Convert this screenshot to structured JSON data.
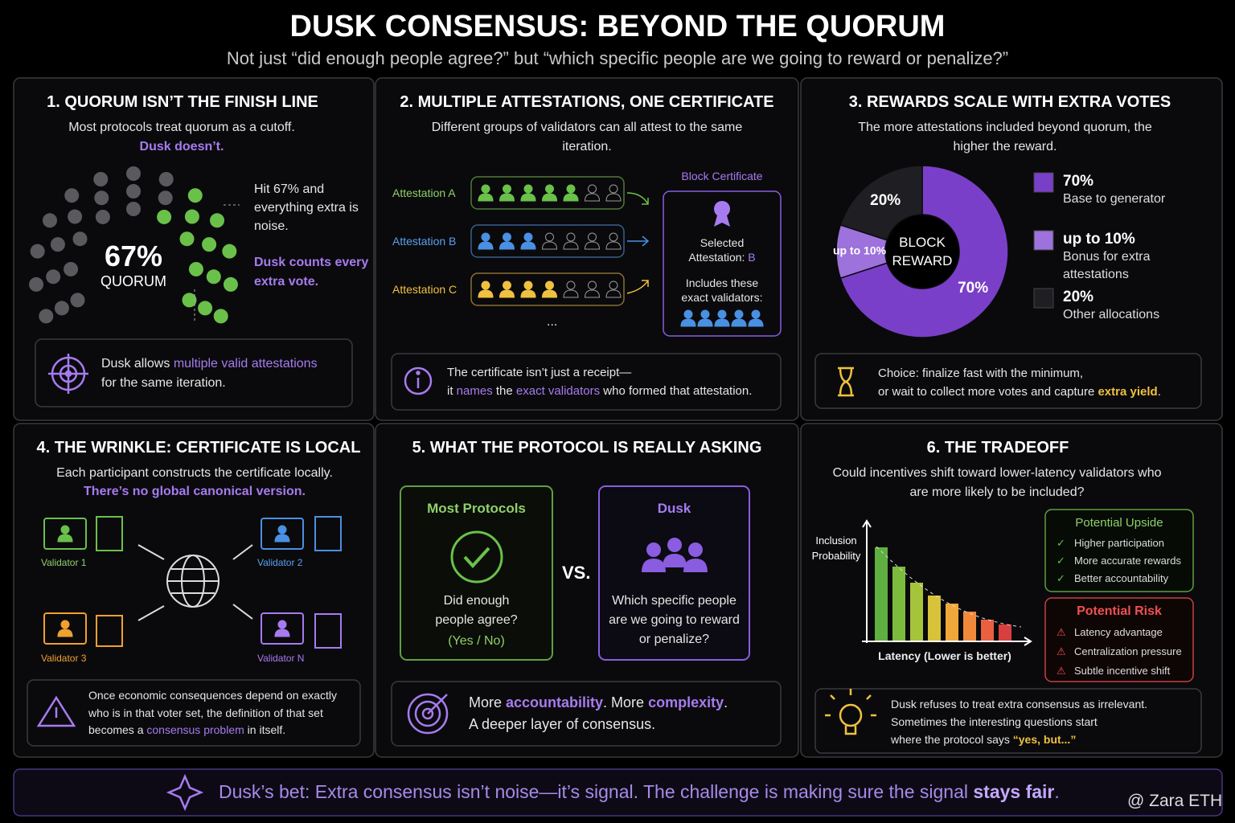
{
  "title": "DUSK CONSENSUS: BEYOND THE QUORUM",
  "subtitle": "Not just “did enough people agree?” but “which specific people are we going to reward or penalize?”",
  "panel1": {
    "heading": "1. QUORUM ISN’T THE FINISH LINE",
    "intro": "Most protocols treat quorum as a cutoff.",
    "highlight": "Dusk doesn’t.",
    "gauge_value": "67%",
    "gauge_label": "QUORUM",
    "note": "Hit 67% and everything extra is noise.",
    "note_highlight": "Dusk counts every extra vote.",
    "callout": [
      "Dusk allows ",
      "multiple valid attestations",
      "for the same iteration."
    ]
  },
  "panel2": {
    "heading": "2. MULTIPLE ATTESTATIONS, ONE CERTIFICATE",
    "intro": "Different groups of validators can all attest to the same iteration.",
    "attestations": [
      "Attestation A",
      "Attestation B",
      "Attestation C"
    ],
    "ellipsis": "...",
    "certificate_title": "Block Certificate",
    "certificate_selected": "Selected Attestation: ",
    "certificate_selected_value": "B",
    "certificate_includes": "Includes these exact validators:",
    "callout": [
      "The certificate isn’t just a receipt—",
      "it ",
      "names",
      " the ",
      "exact validators",
      " who formed that attestation."
    ]
  },
  "panel3": {
    "heading": "3. REWARDS SCALE WITH EXTRA VOTES",
    "intro": "The more attestations included beyond quorum, the higher the reward.",
    "chart_data": {
      "type": "pie",
      "center_label": "BLOCK REWARD",
      "values": [
        70,
        10,
        20
      ],
      "value_labels": [
        "70%",
        "up to 10%",
        "20%"
      ],
      "colors": [
        "#7a3fc8",
        "#9d72dc",
        "#1f1f23"
      ],
      "legend_labels": [
        "Base to generator",
        "Bonus for extra attestations",
        "Other allocations"
      ]
    },
    "callout": [
      "Choice: finalize fast with the minimum,",
      "or wait to collect more votes and capture ",
      "extra yield",
      "."
    ]
  },
  "panel4": {
    "heading": "4. THE WRINKLE: CERTIFICATE IS LOCAL",
    "intro": "Each participant constructs the certificate locally.",
    "highlight": "There’s no global canonical version.",
    "validators": [
      "Validator 1",
      "Validator 2",
      "Validator 3",
      "Validator N"
    ],
    "callout": [
      "Once economic consequences depend on exactly who is in that voter set, the definition of that set becomes a ",
      "consensus problem",
      " in itself."
    ]
  },
  "panel5": {
    "heading": "5. WHAT THE PROTOCOL IS REALLY ASKING",
    "left": {
      "title": "Most Protocols",
      "question": "Did enough people agree?",
      "answer": "(Yes / No)"
    },
    "vs": "VS.",
    "right": {
      "title": "Dusk",
      "question": "Which specific people are we going to reward or penalize?"
    },
    "callout": [
      "More ",
      "accountability",
      ". More ",
      "complexity",
      ".",
      "A deeper layer of consensus."
    ]
  },
  "panel6": {
    "heading": "6. THE TRADEOFF",
    "intro": "Could incentives shift toward lower-latency validators who are more likely to be included?",
    "y_label": "Inclusion Probability",
    "x_label": "Latency (Lower is better)",
    "upside": {
      "title": "Potential Upside",
      "items": [
        "Higher participation",
        "More accurate rewards",
        "Better accountability"
      ]
    },
    "risk": {
      "title": "Potential Risk",
      "items": [
        "Latency advantage",
        "Centralization pressure",
        "Subtle incentive shift"
      ]
    },
    "callout": [
      "Dusk refuses to treat extra consensus as irrelevant.",
      "Sometimes the interesting questions start",
      "where the protocol says ",
      "“yes, but...”"
    ]
  },
  "footer": [
    "Dusk’s bet: Extra consensus isn’t noise—it’s signal. The challenge is making sure the signal ",
    "stays fair",
    "."
  ],
  "watermark": "@ Zara ETH"
}
